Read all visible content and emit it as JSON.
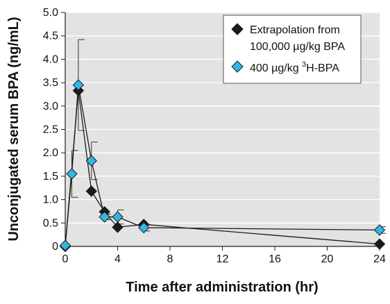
{
  "chart_data": {
    "type": "line",
    "xlabel": "Time after administration (hr)",
    "ylabel": "Unconjugated serum BPA (ng/mL)",
    "xlim": [
      0,
      24
    ],
    "ylim": [
      0,
      5.0
    ],
    "x_ticks": [
      "0",
      "4",
      "8",
      "12",
      "16",
      "20",
      "24"
    ],
    "y_ticks": [
      "0",
      "0.5",
      "1.0",
      "1.5",
      "2.0",
      "2.5",
      "3.0",
      "3.5",
      "4.0",
      "4.5",
      "5.0"
    ],
    "grid": "horizontal",
    "legend_position": "top-right",
    "background_color": "#e3e3e3",
    "series": [
      {
        "name_line1": "Extrapolation from",
        "name_line2": "100,000 µg/kg BPA",
        "marker": "diamond",
        "color": "#1a1a1a",
        "points": [
          {
            "x": 0,
            "y": 0.0
          },
          {
            "x": 1,
            "y": 3.33
          },
          {
            "x": 2,
            "y": 1.18
          },
          {
            "x": 3,
            "y": 0.74
          },
          {
            "x": 4,
            "y": 0.41
          },
          {
            "x": 6,
            "y": 0.47
          },
          {
            "x": 24,
            "y": 0.05
          }
        ]
      },
      {
        "name_prefix": "400 µg/kg ",
        "name_sup": "3",
        "name_suffix": "H-BPA",
        "marker": "diamond",
        "color": "#33b5e5",
        "points": [
          {
            "x": 0,
            "y": 0.02,
            "err": 0
          },
          {
            "x": 0.5,
            "y": 1.55,
            "err": 0.5
          },
          {
            "x": 1,
            "y": 3.45,
            "err": 0.97
          },
          {
            "x": 2,
            "y": 1.83,
            "err": 0.4
          },
          {
            "x": 3,
            "y": 0.63,
            "err": 0.06
          },
          {
            "x": 4,
            "y": 0.63,
            "err": 0.15
          },
          {
            "x": 6,
            "y": 0.4,
            "err": 0.07
          },
          {
            "x": 24,
            "y": 0.35,
            "err": 0.07
          }
        ]
      }
    ]
  }
}
